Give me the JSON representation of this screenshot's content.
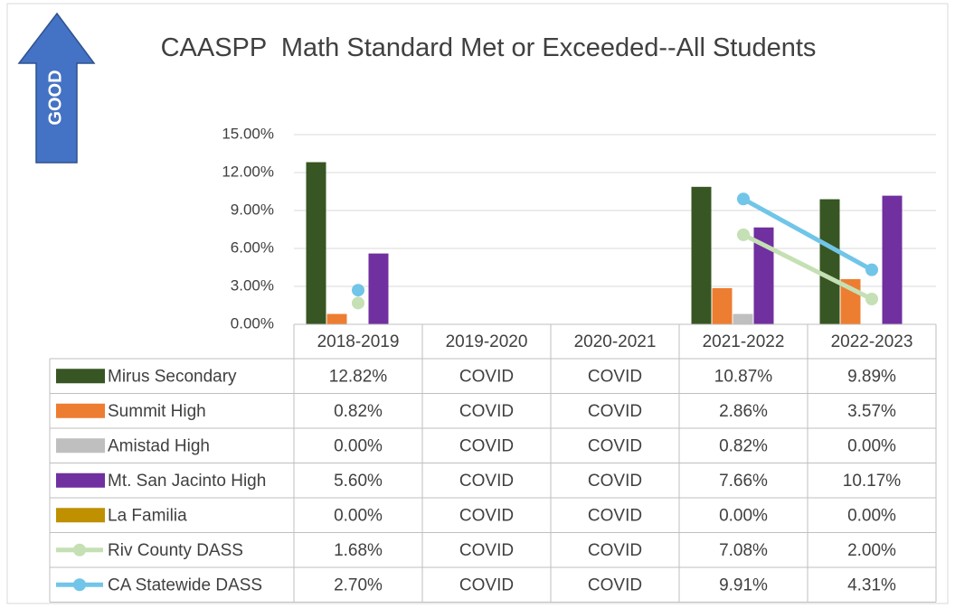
{
  "chart_data": {
    "type": "bar",
    "title": "CAASPP  Math Standard Met or Exceeded--All Students",
    "annotation": "GOOD",
    "categories": [
      "2018-2019",
      "2019-2020",
      "2020-2021",
      "2021-2022",
      "2022-2023"
    ],
    "ylim": [
      0,
      15
    ],
    "yticks": [
      {
        "value": 0,
        "label": "0.00%"
      },
      {
        "value": 3,
        "label": "3.00%"
      },
      {
        "value": 6,
        "label": "6.00%"
      },
      {
        "value": 9,
        "label": "9.00%"
      },
      {
        "value": 12,
        "label": "12.00%"
      },
      {
        "value": 15,
        "label": "15.00%"
      }
    ],
    "grid": true,
    "series": [
      {
        "name": "Mirus Secondary",
        "type": "bar",
        "color": "#375623",
        "values": [
          12.82,
          null,
          null,
          10.87,
          9.89
        ],
        "value_labels": [
          "12.82%",
          "COVID",
          "COVID",
          "10.87%",
          "9.89%"
        ]
      },
      {
        "name": "Summit High",
        "type": "bar",
        "color": "#ed7d31",
        "values": [
          0.82,
          null,
          null,
          2.86,
          3.57
        ],
        "value_labels": [
          "0.82%",
          "COVID",
          "COVID",
          "2.86%",
          "3.57%"
        ]
      },
      {
        "name": "Amistad High",
        "type": "bar",
        "color": "#bfbfbf",
        "values": [
          0,
          null,
          null,
          0.82,
          0
        ],
        "value_labels": [
          "0.00%",
          "COVID",
          "COVID",
          "0.82%",
          "0.00%"
        ]
      },
      {
        "name": "Mt. San Jacinto High",
        "type": "bar",
        "color": "#7030a0",
        "values": [
          5.6,
          null,
          null,
          7.66,
          10.17
        ],
        "value_labels": [
          "5.60%",
          "COVID",
          "COVID",
          "7.66%",
          "10.17%"
        ]
      },
      {
        "name": "La Familia",
        "type": "bar",
        "color": "#bf9000",
        "values": [
          0,
          null,
          null,
          0,
          0
        ],
        "value_labels": [
          "0.00%",
          "COVID",
          "COVID",
          "0.00%",
          "0.00%"
        ]
      },
      {
        "name": "Riv  County DASS",
        "type": "line",
        "color": "#c5e0b4",
        "values": [
          1.68,
          null,
          null,
          7.08,
          2.0
        ],
        "value_labels": [
          "1.68%",
          "COVID",
          "COVID",
          "7.08%",
          "2.00%"
        ]
      },
      {
        "name": "CA Statewide DASS",
        "type": "line",
        "color": "#71c5e8",
        "values": [
          2.7,
          null,
          null,
          9.91,
          4.31
        ],
        "value_labels": [
          "2.70%",
          "COVID",
          "COVID",
          "9.91%",
          "4.31%"
        ]
      }
    ]
  }
}
